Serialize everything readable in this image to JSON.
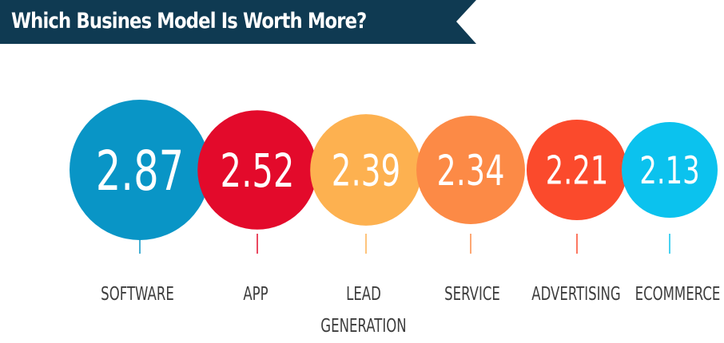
{
  "title": "Which Busines Model Is Worth More?",
  "colors": {
    "banner": "#0f3a52",
    "banner_accent": "#ffffff",
    "text_dark": "#3d3d3d"
  },
  "chart_data": {
    "type": "bubble",
    "title": "Which Busines Model Is Worth More?",
    "categories": [
      "SOFTWARE",
      "APP",
      "LEAD GENERATION",
      "SERVICE",
      "ADVERTISING",
      "ECOMMERCE"
    ],
    "values": [
      2.87,
      2.52,
      2.39,
      2.34,
      2.21,
      2.13
    ],
    "value_labels": [
      "2.87",
      "2.52",
      "2.39",
      "2.34",
      "2.21",
      "2.13"
    ],
    "colors": [
      "#0995c6",
      "#e30a2b",
      "#fdb150",
      "#fc8a46",
      "#fb4a2c",
      "#0bc2ee"
    ],
    "legend": false,
    "grid": false
  }
}
